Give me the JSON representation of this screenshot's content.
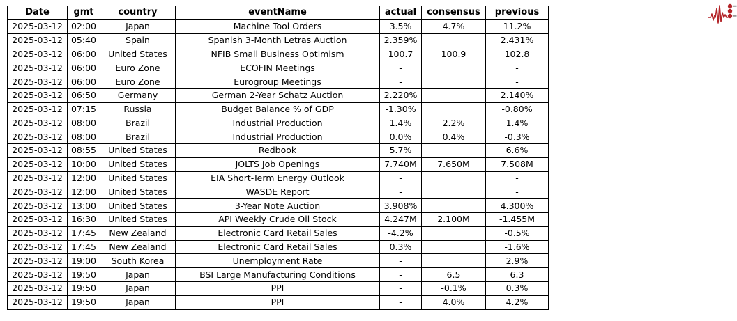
{
  "chart_data": {
    "type": "table",
    "columns": [
      "Date",
      "gmt",
      "country",
      "eventName",
      "actual",
      "consensus",
      "previous"
    ],
    "rows": [
      [
        "2025-03-12",
        "02:00",
        "Japan",
        "Machine Tool Orders",
        "3.5%",
        "4.7%",
        "11.2%"
      ],
      [
        "2025-03-12",
        "05:40",
        "Spain",
        "Spanish 3-Month Letras Auction",
        "2.359%",
        "",
        "2.431%"
      ],
      [
        "2025-03-12",
        "06:00",
        "United States",
        "NFIB Small Business Optimism",
        "100.7",
        "100.9",
        "102.8"
      ],
      [
        "2025-03-12",
        "06:00",
        "Euro Zone",
        "ECOFIN Meetings",
        "-",
        "",
        "-"
      ],
      [
        "2025-03-12",
        "06:00",
        "Euro Zone",
        "Eurogroup Meetings",
        "-",
        "",
        "-"
      ],
      [
        "2025-03-12",
        "06:50",
        "Germany",
        "German 2-Year Schatz Auction",
        "2.220%",
        "",
        "2.140%"
      ],
      [
        "2025-03-12",
        "07:15",
        "Russia",
        "Budget Balance % of GDP",
        "-1.30%",
        "",
        "-0.80%"
      ],
      [
        "2025-03-12",
        "08:00",
        "Brazil",
        "Industrial Production",
        "1.4%",
        "2.2%",
        "1.4%"
      ],
      [
        "2025-03-12",
        "08:00",
        "Brazil",
        "Industrial Production",
        "0.0%",
        "0.4%",
        "-0.3%"
      ],
      [
        "2025-03-12",
        "08:55",
        "United States",
        "Redbook",
        "5.7%",
        "",
        "6.6%"
      ],
      [
        "2025-03-12",
        "10:00",
        "United States",
        "JOLTS Job Openings",
        "7.740M",
        "7.650M",
        "7.508M"
      ],
      [
        "2025-03-12",
        "12:00",
        "United States",
        "EIA Short-Term Energy Outlook",
        "-",
        "",
        "-"
      ],
      [
        "2025-03-12",
        "12:00",
        "United States",
        "WASDE Report",
        "-",
        "",
        "-"
      ],
      [
        "2025-03-12",
        "13:00",
        "United States",
        "3-Year Note Auction",
        "3.908%",
        "",
        "4.300%"
      ],
      [
        "2025-03-12",
        "16:30",
        "United States",
        "API Weekly Crude Oil Stock",
        "4.247M",
        "2.100M",
        "-1.455M"
      ],
      [
        "2025-03-12",
        "17:45",
        "New Zealand",
        "Electronic Card Retail Sales",
        "-4.2%",
        "",
        "-0.5%"
      ],
      [
        "2025-03-12",
        "17:45",
        "New Zealand",
        "Electronic Card Retail Sales",
        "0.3%",
        "",
        "-1.6%"
      ],
      [
        "2025-03-12",
        "19:00",
        "South Korea",
        "Unemployment Rate",
        "-",
        "",
        "2.9%"
      ],
      [
        "2025-03-12",
        "19:50",
        "Japan",
        "BSI Large Manufacturing Conditions",
        "-",
        "6.5",
        "6.3"
      ],
      [
        "2025-03-12",
        "19:50",
        "Japan",
        "PPI",
        "-",
        "-0.1%",
        "0.3%"
      ],
      [
        "2025-03-12",
        "19:50",
        "Japan",
        "PPI",
        "-",
        "4.0%",
        "4.2%"
      ]
    ]
  },
  "colors": {
    "background": "#ffffff",
    "text": "#000000",
    "grid_border": "#000000",
    "logo_red": "#b32428",
    "logo_gray": "#9a9a9a"
  }
}
